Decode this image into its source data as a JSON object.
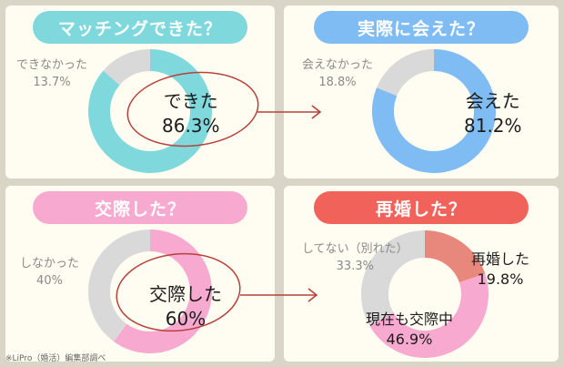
{
  "footnote": "※LiPro（婚活）編集部調べ",
  "colors": {
    "teal": "#7fd9dc",
    "blue": "#7fbcf4",
    "pink": "#f7a9cf",
    "red": "#f1635a",
    "salmon": "#e8877b",
    "grey": "#d9d9d9",
    "circle": "#b7423c"
  },
  "chart_data": [
    {
      "type": "pie",
      "title": "マッチングできた？",
      "labels": [
        "できた",
        "できなかった"
      ],
      "values": [
        86.3,
        13.7
      ],
      "value_labels": [
        "86.3%",
        "13.7%"
      ]
    },
    {
      "type": "pie",
      "title": "実際に会えた？",
      "labels": [
        "会えた",
        "会えなかった"
      ],
      "values": [
        81.2,
        18.8
      ],
      "value_labels": [
        "81.2%",
        "18.8%"
      ]
    },
    {
      "type": "pie",
      "title": "交際した？",
      "labels": [
        "交際した",
        "しなかった"
      ],
      "values": [
        60,
        40
      ],
      "value_labels": [
        "60%",
        "40%"
      ]
    },
    {
      "type": "pie",
      "title": "再婚した？",
      "labels": [
        "再婚した",
        "現在も交際中",
        "してない（別れた）"
      ],
      "values": [
        19.8,
        46.9,
        33.3
      ],
      "value_labels": [
        "19.8%",
        "46.9%",
        "33.3%"
      ]
    }
  ]
}
